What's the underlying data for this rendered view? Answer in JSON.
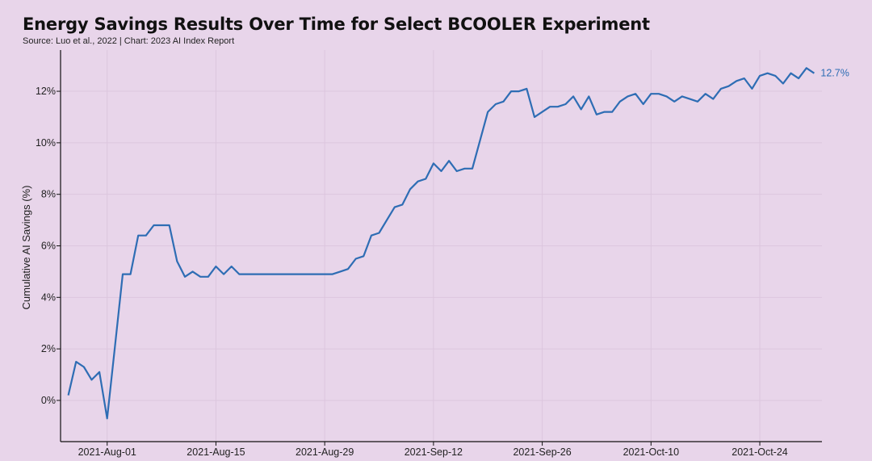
{
  "header": {
    "title": "Energy Savings Results Over Time for Select BCOOLER Experiment",
    "subtitle": "Source: Luo et al., 2022 | Chart: 2023 AI Index Report"
  },
  "colors": {
    "background": "#e8d5ea",
    "line": "#2e6db4",
    "grid": "#dcc6de",
    "axis": "#111111"
  },
  "chart_data": {
    "type": "line",
    "title": "Energy Savings Results Over Time for Select BCOOLER Experiment",
    "xlabel": "",
    "ylabel": "Cumulative AI Savings (%)",
    "x_start": "2021-07-26",
    "x_end": "2021-11-01",
    "ylim": [
      -1.6,
      13.6
    ],
    "yticks": [
      0,
      2,
      4,
      6,
      8,
      10,
      12
    ],
    "ytick_labels": [
      "0%",
      "2%",
      "4%",
      "6%",
      "8%",
      "10%",
      "12%"
    ],
    "xticks": [
      "2021-08-01",
      "2021-08-15",
      "2021-08-29",
      "2021-09-12",
      "2021-09-26",
      "2021-10-10",
      "2021-10-24"
    ],
    "xtick_labels": [
      "2021-Aug-01",
      "2021-Aug-15",
      "2021-Aug-29",
      "2021-Sep-12",
      "2021-Sep-26",
      "2021-Oct-10",
      "2021-Oct-24"
    ],
    "grid": true,
    "end_label": "12.7%",
    "series": [
      {
        "x": [
          "2021-07-27",
          "2021-07-28",
          "2021-07-29",
          "2021-07-30",
          "2021-07-31",
          "2021-08-01",
          "2021-08-02",
          "2021-08-03",
          "2021-08-04",
          "2021-08-05",
          "2021-08-06",
          "2021-08-07",
          "2021-08-08",
          "2021-08-09",
          "2021-08-10",
          "2021-08-11",
          "2021-08-12",
          "2021-08-13",
          "2021-08-14",
          "2021-08-15",
          "2021-08-16",
          "2021-08-17",
          "2021-08-18",
          "2021-08-19",
          "2021-08-20",
          "2021-08-21",
          "2021-08-22",
          "2021-08-23",
          "2021-08-24",
          "2021-08-25",
          "2021-08-26",
          "2021-08-27",
          "2021-08-28",
          "2021-08-29",
          "2021-08-30",
          "2021-08-31",
          "2021-09-01",
          "2021-09-02",
          "2021-09-03",
          "2021-09-04",
          "2021-09-05",
          "2021-09-06",
          "2021-09-07",
          "2021-09-08",
          "2021-09-09",
          "2021-09-10",
          "2021-09-11",
          "2021-09-12",
          "2021-09-13",
          "2021-09-14",
          "2021-09-15",
          "2021-09-16",
          "2021-09-17",
          "2021-09-18",
          "2021-09-19",
          "2021-09-20",
          "2021-09-21",
          "2021-09-22",
          "2021-09-23",
          "2021-09-24",
          "2021-09-25",
          "2021-09-26",
          "2021-09-27",
          "2021-09-28",
          "2021-09-29",
          "2021-09-30",
          "2021-10-01",
          "2021-10-02",
          "2021-10-03",
          "2021-10-04",
          "2021-10-05",
          "2021-10-06",
          "2021-10-07",
          "2021-10-08",
          "2021-10-09",
          "2021-10-10",
          "2021-10-11",
          "2021-10-12",
          "2021-10-13",
          "2021-10-14",
          "2021-10-15",
          "2021-10-16",
          "2021-10-17",
          "2021-10-18",
          "2021-10-19",
          "2021-10-20",
          "2021-10-21",
          "2021-10-22",
          "2021-10-23",
          "2021-10-24",
          "2021-10-25",
          "2021-10-26",
          "2021-10-27",
          "2021-10-28",
          "2021-10-29",
          "2021-10-30",
          "2021-10-31"
        ],
        "y": [
          0.2,
          1.5,
          1.3,
          0.8,
          1.1,
          -0.7,
          2.1,
          4.9,
          4.9,
          6.4,
          6.4,
          6.8,
          6.8,
          6.8,
          5.4,
          4.8,
          5.0,
          4.8,
          4.8,
          5.2,
          4.9,
          5.2,
          4.9,
          4.9,
          4.9,
          4.9,
          4.9,
          4.9,
          4.9,
          4.9,
          4.9,
          4.9,
          4.9,
          4.9,
          4.9,
          5.0,
          5.1,
          5.5,
          5.6,
          6.4,
          6.5,
          7.0,
          7.5,
          7.6,
          8.2,
          8.5,
          8.6,
          9.2,
          8.9,
          9.3,
          8.9,
          9.0,
          9.0,
          10.1,
          11.2,
          11.5,
          11.6,
          12.0,
          12.0,
          12.1,
          11.0,
          11.2,
          11.4,
          11.4,
          11.5,
          11.8,
          11.3,
          11.8,
          11.1,
          11.2,
          11.2,
          11.6,
          11.8,
          11.9,
          11.5,
          11.9,
          11.9,
          11.8,
          11.6,
          11.8,
          11.7,
          11.6,
          11.9,
          11.7,
          12.1,
          12.2,
          12.4,
          12.5,
          12.1,
          12.6,
          12.7,
          12.6,
          12.3,
          12.7,
          12.5,
          12.9,
          12.7
        ]
      }
    ]
  }
}
